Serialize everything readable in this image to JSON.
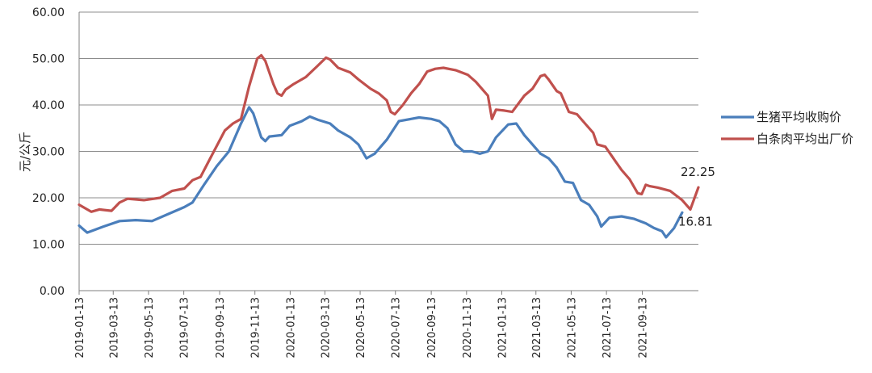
{
  "chart_data": {
    "type": "line",
    "title": "",
    "xlabel": "",
    "ylabel": "元/公斤",
    "ylim": [
      0,
      60
    ],
    "yticks": [
      "0.00",
      "10.00",
      "20.00",
      "30.00",
      "40.00",
      "50.00",
      "60.00"
    ],
    "xticks": [
      "2019-01-13",
      "2019-03-13",
      "2019-05-13",
      "2019-07-13",
      "2019-09-13",
      "2019-11-13",
      "2020-01-13",
      "2020-03-13",
      "2020-05-13",
      "2020-07-13",
      "2020-09-13",
      "2020-11-13",
      "2021-01-13",
      "2021-03-13",
      "2021-05-13",
      "2021-07-13",
      "2021-09-13"
    ],
    "grid": true,
    "legend": "right",
    "series": [
      {
        "name": "生猪平均收购价",
        "color": "#4a7ebb",
        "end_label": "16.81",
        "points": [
          [
            "2019-01-13",
            14.0
          ],
          [
            "2019-01-27",
            12.5
          ],
          [
            "2019-02-24",
            13.8
          ],
          [
            "2019-03-24",
            15.0
          ],
          [
            "2019-04-21",
            15.2
          ],
          [
            "2019-05-19",
            15.0
          ],
          [
            "2019-06-16",
            16.5
          ],
          [
            "2019-07-14",
            18.0
          ],
          [
            "2019-07-28",
            19.0
          ],
          [
            "2019-08-18",
            23.0
          ],
          [
            "2019-09-08",
            26.8
          ],
          [
            "2019-09-29",
            30.0
          ],
          [
            "2019-10-20",
            36.0
          ],
          [
            "2019-11-03",
            39.5
          ],
          [
            "2019-11-10",
            38.2
          ],
          [
            "2019-11-24",
            33.0
          ],
          [
            "2019-12-01",
            32.2
          ],
          [
            "2019-12-08",
            33.2
          ],
          [
            "2019-12-29",
            33.5
          ],
          [
            "2020-01-12",
            35.5
          ],
          [
            "2020-02-02",
            36.5
          ],
          [
            "2020-02-16",
            37.5
          ],
          [
            "2020-03-01",
            36.8
          ],
          [
            "2020-03-22",
            36.0
          ],
          [
            "2020-04-05",
            34.5
          ],
          [
            "2020-04-26",
            33.0
          ],
          [
            "2020-05-10",
            31.5
          ],
          [
            "2020-05-24",
            28.5
          ],
          [
            "2020-06-07",
            29.5
          ],
          [
            "2020-06-28",
            32.5
          ],
          [
            "2020-07-19",
            36.5
          ],
          [
            "2020-08-09",
            37.0
          ],
          [
            "2020-08-23",
            37.3
          ],
          [
            "2020-09-13",
            37.0
          ],
          [
            "2020-09-27",
            36.5
          ],
          [
            "2020-10-11",
            35.0
          ],
          [
            "2020-10-25",
            31.5
          ],
          [
            "2020-11-08",
            30.0
          ],
          [
            "2020-11-22",
            30.0
          ],
          [
            "2020-12-06",
            29.5
          ],
          [
            "2020-12-20",
            30.0
          ],
          [
            "2021-01-03",
            33.0
          ],
          [
            "2021-01-24",
            35.8
          ],
          [
            "2021-02-07",
            36.0
          ],
          [
            "2021-02-21",
            33.5
          ],
          [
            "2021-03-07",
            31.5
          ],
          [
            "2021-03-21",
            29.5
          ],
          [
            "2021-04-04",
            28.5
          ],
          [
            "2021-04-18",
            26.5
          ],
          [
            "2021-05-02",
            23.5
          ],
          [
            "2021-05-16",
            23.2
          ],
          [
            "2021-05-30",
            19.5
          ],
          [
            "2021-06-13",
            18.5
          ],
          [
            "2021-06-27",
            16.0
          ],
          [
            "2021-07-04",
            13.8
          ],
          [
            "2021-07-18",
            15.7
          ],
          [
            "2021-07-25",
            15.8
          ],
          [
            "2021-08-08",
            16.0
          ],
          [
            "2021-08-29",
            15.5
          ],
          [
            "2021-09-19",
            14.5
          ],
          [
            "2021-10-03",
            13.5
          ],
          [
            "2021-10-17",
            12.8
          ],
          [
            "2021-10-24",
            11.5
          ],
          [
            "2021-11-07",
            13.5
          ],
          [
            "2021-11-21",
            16.81
          ]
        ]
      },
      {
        "name": "白条肉平均出厂价",
        "color": "#c0504d",
        "end_label": "22.25",
        "points": [
          [
            "2019-01-13",
            18.5
          ],
          [
            "2019-02-03",
            17.0
          ],
          [
            "2019-02-17",
            17.5
          ],
          [
            "2019-03-10",
            17.2
          ],
          [
            "2019-03-24",
            19.0
          ],
          [
            "2019-04-07",
            19.8
          ],
          [
            "2019-05-05",
            19.5
          ],
          [
            "2019-06-02",
            20.0
          ],
          [
            "2019-06-23",
            21.5
          ],
          [
            "2019-07-14",
            22.0
          ],
          [
            "2019-07-28",
            23.8
          ],
          [
            "2019-08-11",
            24.5
          ],
          [
            "2019-09-01",
            29.5
          ],
          [
            "2019-09-22",
            34.5
          ],
          [
            "2019-10-06",
            36.0
          ],
          [
            "2019-10-20",
            37.0
          ],
          [
            "2019-11-03",
            44.0
          ],
          [
            "2019-11-17",
            50.0
          ],
          [
            "2019-11-24",
            50.7
          ],
          [
            "2019-12-01",
            49.5
          ],
          [
            "2019-12-15",
            44.5
          ],
          [
            "2019-12-22",
            42.5
          ],
          [
            "2019-12-29",
            42.0
          ],
          [
            "2020-01-05",
            43.3
          ],
          [
            "2020-01-19",
            44.5
          ],
          [
            "2020-02-09",
            46.0
          ],
          [
            "2020-03-01",
            48.5
          ],
          [
            "2020-03-15",
            50.2
          ],
          [
            "2020-03-22",
            49.8
          ],
          [
            "2020-04-05",
            48.0
          ],
          [
            "2020-04-26",
            47.0
          ],
          [
            "2020-05-10",
            45.5
          ],
          [
            "2020-05-31",
            43.5
          ],
          [
            "2020-06-14",
            42.5
          ],
          [
            "2020-06-28",
            41.0
          ],
          [
            "2020-07-05",
            38.5
          ],
          [
            "2020-07-12",
            38.0
          ],
          [
            "2020-07-26",
            40.0
          ],
          [
            "2020-08-09",
            42.5
          ],
          [
            "2020-08-23",
            44.5
          ],
          [
            "2020-09-06",
            47.2
          ],
          [
            "2020-09-20",
            47.8
          ],
          [
            "2020-10-04",
            48.0
          ],
          [
            "2020-10-25",
            47.5
          ],
          [
            "2020-11-15",
            46.5
          ],
          [
            "2020-11-29",
            45.0
          ],
          [
            "2020-12-13",
            43.0
          ],
          [
            "2020-12-20",
            42.0
          ],
          [
            "2020-12-27",
            37.0
          ],
          [
            "2021-01-03",
            39.0
          ],
          [
            "2021-01-17",
            38.8
          ],
          [
            "2021-01-31",
            38.5
          ],
          [
            "2021-02-21",
            42.0
          ],
          [
            "2021-03-07",
            43.5
          ],
          [
            "2021-03-21",
            46.2
          ],
          [
            "2021-03-28",
            46.5
          ],
          [
            "2021-04-04",
            45.5
          ],
          [
            "2021-04-18",
            43.0
          ],
          [
            "2021-04-25",
            42.5
          ],
          [
            "2021-05-09",
            38.5
          ],
          [
            "2021-05-23",
            38.0
          ],
          [
            "2021-06-06",
            36.0
          ],
          [
            "2021-06-20",
            34.0
          ],
          [
            "2021-06-27",
            31.5
          ],
          [
            "2021-07-11",
            31.0
          ],
          [
            "2021-07-25",
            28.5
          ],
          [
            "2021-08-08",
            26.0
          ],
          [
            "2021-08-22",
            24.0
          ],
          [
            "2021-09-05",
            21.0
          ],
          [
            "2021-09-12",
            20.8
          ],
          [
            "2021-09-19",
            22.8
          ],
          [
            "2021-09-26",
            22.5
          ],
          [
            "2021-10-10",
            22.2
          ],
          [
            "2021-10-31",
            21.5
          ],
          [
            "2021-11-21",
            19.5
          ],
          [
            "2021-12-05",
            17.5
          ],
          [
            "2021-12-19",
            22.25
          ]
        ]
      }
    ]
  }
}
